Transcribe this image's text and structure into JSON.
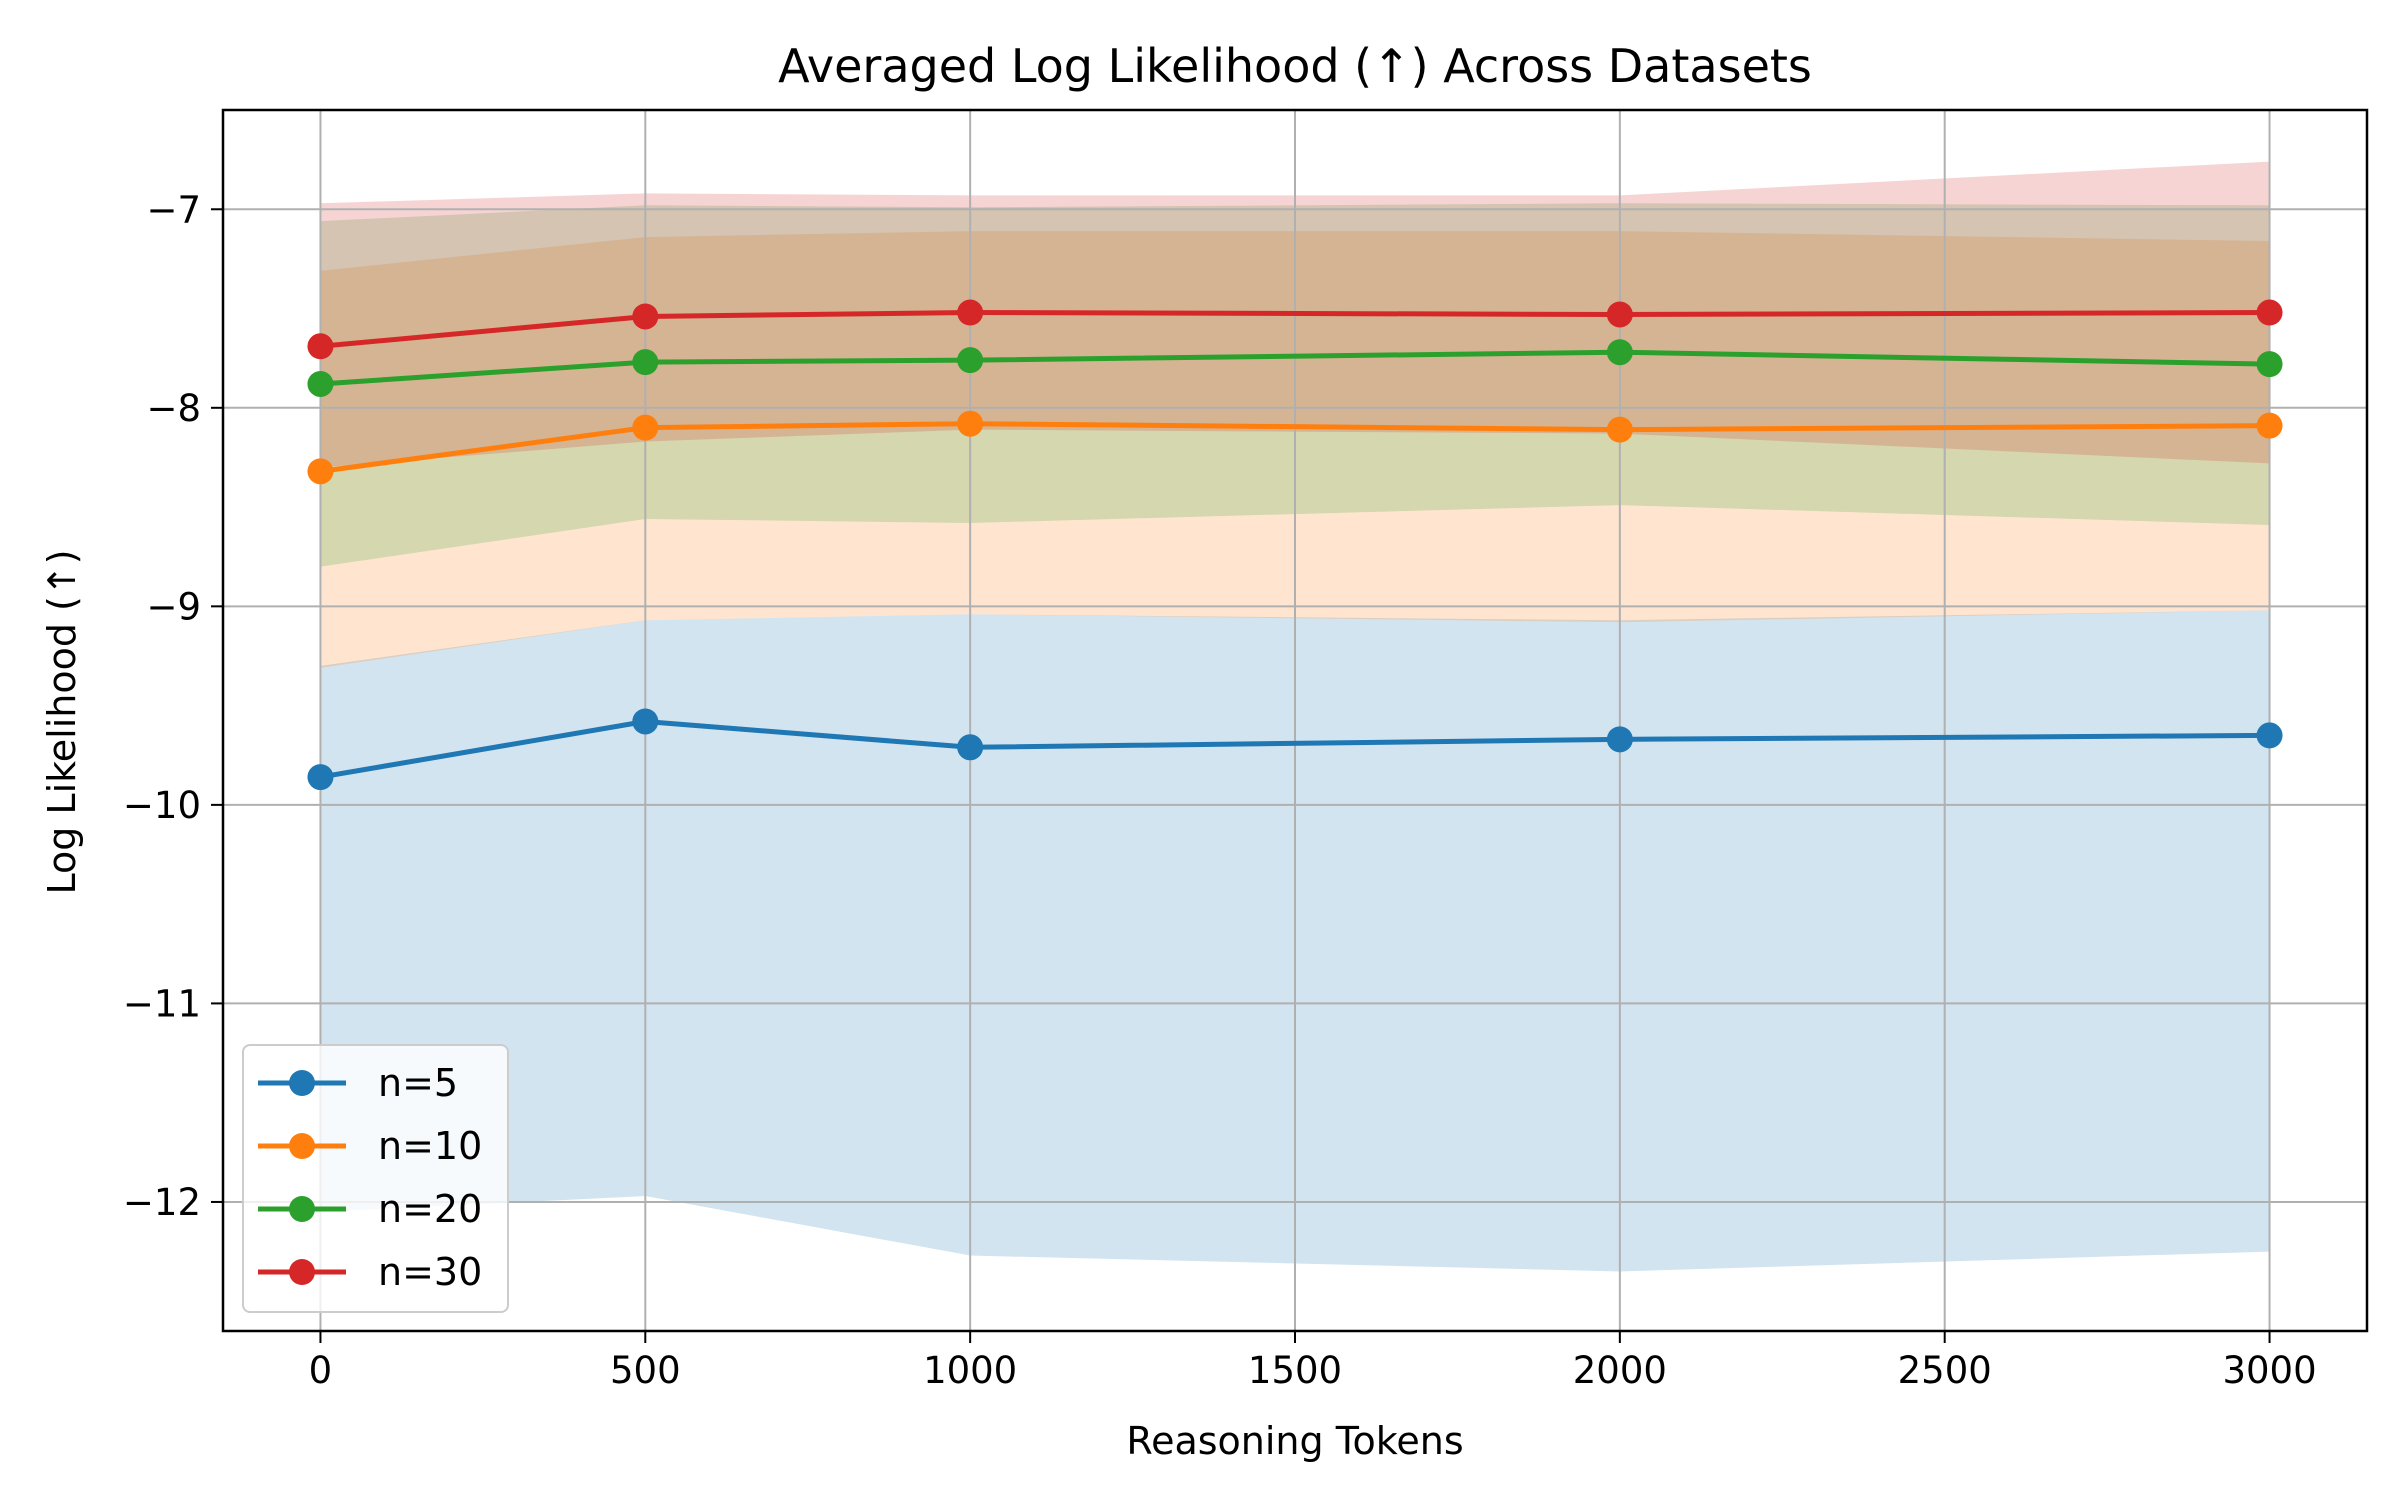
{
  "chart_data": {
    "type": "line",
    "title": "Averaged Log Likelihood (↑) Across Datasets",
    "xlabel": "Reasoning Tokens",
    "ylabel": "Log Likelihood (↑)",
    "x": [
      0,
      500,
      1000,
      2000,
      3000
    ],
    "xlim": [
      -150,
      3150
    ],
    "ylim": [
      -12.65,
      -6.5
    ],
    "xticks": [
      0,
      500,
      1000,
      1500,
      2000,
      2500,
      3000
    ],
    "xtick_labels": [
      "0",
      "500",
      "1000",
      "1500",
      "2000",
      "2500",
      "3000"
    ],
    "yticks": [
      -7,
      -8,
      -9,
      -10,
      -11,
      -12
    ],
    "ytick_labels": [
      "−7",
      "−8",
      "−9",
      "−10",
      "−11",
      "−12"
    ],
    "grid": true,
    "legend_position": "lower-left",
    "series": [
      {
        "name": "n=5",
        "color": "#1f77b4",
        "values": [
          -9.86,
          -9.58,
          -9.71,
          -9.67,
          -9.65
        ],
        "band_upper": [
          -9.3,
          -9.07,
          -9.04,
          -9.07,
          -9.02
        ],
        "band_lower": [
          -12.05,
          -11.97,
          -12.27,
          -12.35,
          -12.25
        ]
      },
      {
        "name": "n=10",
        "color": "#ff7f0e",
        "values": [
          -8.32,
          -8.1,
          -8.08,
          -8.11,
          -8.09
        ],
        "band_upper": [
          -7.31,
          -7.14,
          -7.11,
          -7.11,
          -7.16
        ],
        "band_lower": [
          -9.31,
          -9.07,
          -9.04,
          -9.08,
          -9.02
        ]
      },
      {
        "name": "n=20",
        "color": "#2ca02c",
        "values": [
          -7.88,
          -7.77,
          -7.76,
          -7.72,
          -7.78
        ],
        "band_upper": [
          -7.06,
          -6.98,
          -6.99,
          -6.97,
          -6.98
        ],
        "band_lower": [
          -8.8,
          -8.56,
          -8.58,
          -8.49,
          -8.59
        ]
      },
      {
        "name": "n=30",
        "color": "#d62728",
        "values": [
          -7.69,
          -7.54,
          -7.52,
          -7.53,
          -7.52
        ],
        "band_upper": [
          -6.97,
          -6.92,
          -6.93,
          -6.93,
          -6.76
        ],
        "band_lower": [
          -8.3,
          -8.17,
          -8.11,
          -8.13,
          -8.28
        ]
      }
    ]
  }
}
